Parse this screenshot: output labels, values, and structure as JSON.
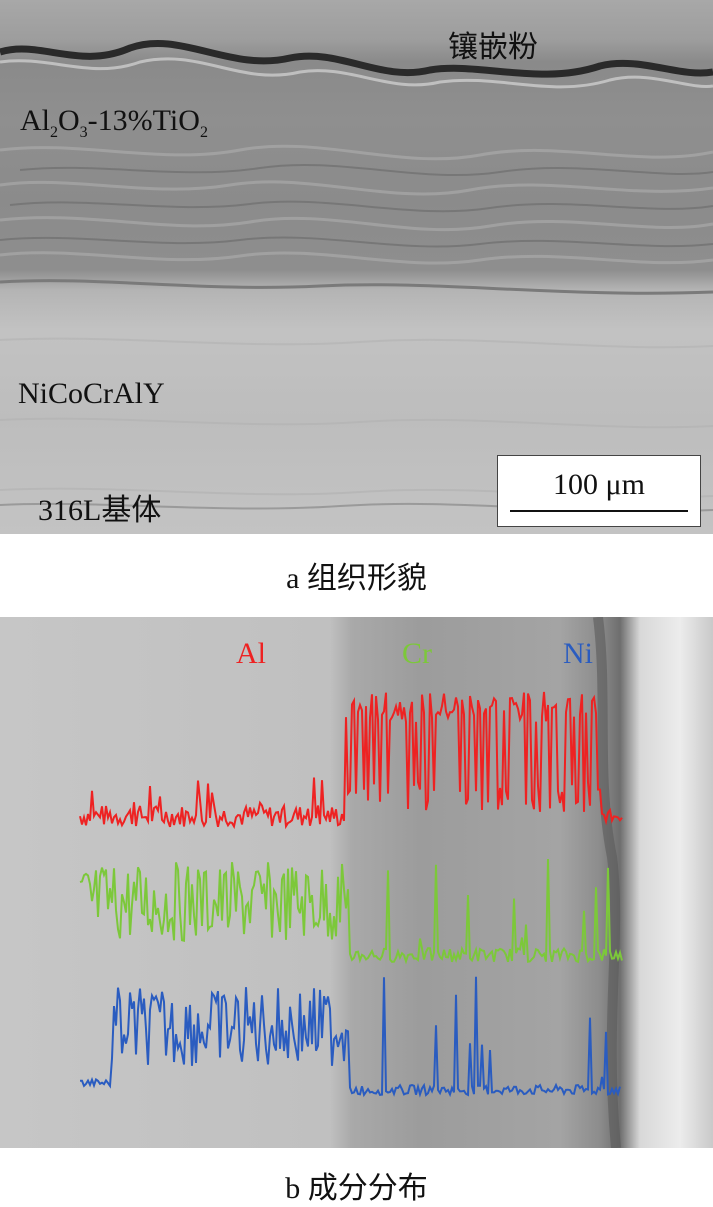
{
  "panel_a": {
    "labels": {
      "mount": "镶嵌粉",
      "ceramic_main": "Al",
      "ceramic_sub1": "2",
      "ceramic_o": "O",
      "ceramic_sub2": "3",
      "ceramic_mid": "-13%TiO",
      "ceramic_sub3": "2",
      "bond": "NiCoCrAlY",
      "substrate": "316L基体"
    },
    "scale_bar": "100 μm",
    "caption": "a  组织形貌"
  },
  "panel_b": {
    "labels": {
      "al": "Al",
      "cr": "Cr",
      "ni": "Ni"
    },
    "colors": {
      "al": "#ee2222",
      "cr": "#7cc83a",
      "ni": "#2a5cc0"
    },
    "caption": "b  成分分布"
  }
}
